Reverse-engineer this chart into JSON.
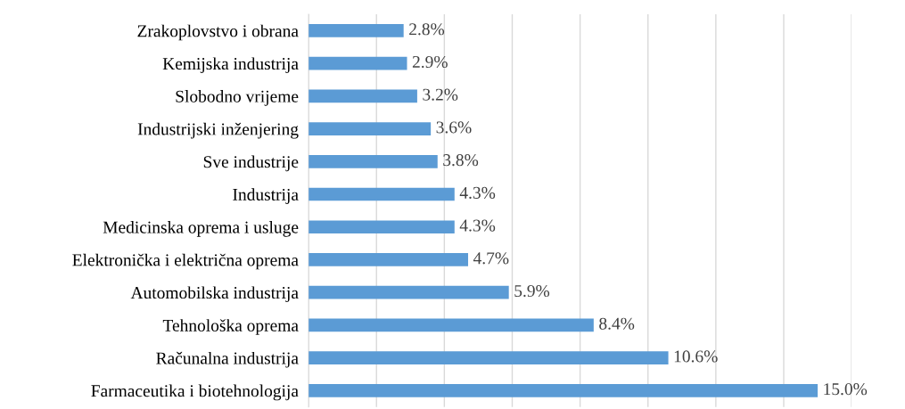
{
  "chart_data": {
    "type": "bar",
    "orientation": "horizontal",
    "categories": [
      "Zrakoplovstvo i obrana",
      "Kemijska industrija",
      "Slobodno vrijeme",
      "Industrijski inženjering",
      "Sve industrije",
      "Industrija",
      "Medicinska oprema i usluge",
      "Elektronička i električna oprema",
      "Automobilska industrija",
      "Tehnološka oprema",
      "Računalna industrija",
      "Farmaceutika i biotehnologija"
    ],
    "values": [
      2.8,
      2.9,
      3.2,
      3.6,
      3.8,
      4.3,
      4.3,
      4.7,
      5.9,
      8.4,
      10.6,
      15.0
    ],
    "value_labels": [
      "2.8%",
      "2.9%",
      "3.2%",
      "3.6%",
      "3.8%",
      "4.3%",
      "4.3%",
      "4.7%",
      "5.9%",
      "8.4%",
      "10.6%",
      "15.0%"
    ],
    "color": "#5b9bd5",
    "xlim": [
      0,
      16
    ],
    "xticks": [
      {
        "value": 0,
        "label": null
      },
      {
        "value": 2,
        "label": null
      },
      {
        "value": 4,
        "label": null
      },
      {
        "value": 6,
        "label": null
      },
      {
        "value": 8,
        "label": null
      },
      {
        "value": 10,
        "label": null
      },
      {
        "value": 12,
        "label": null
      },
      {
        "value": 14,
        "label": null
      },
      {
        "value": 16,
        "label": null
      }
    ],
    "grid": "x",
    "tick_labels": "y"
  }
}
